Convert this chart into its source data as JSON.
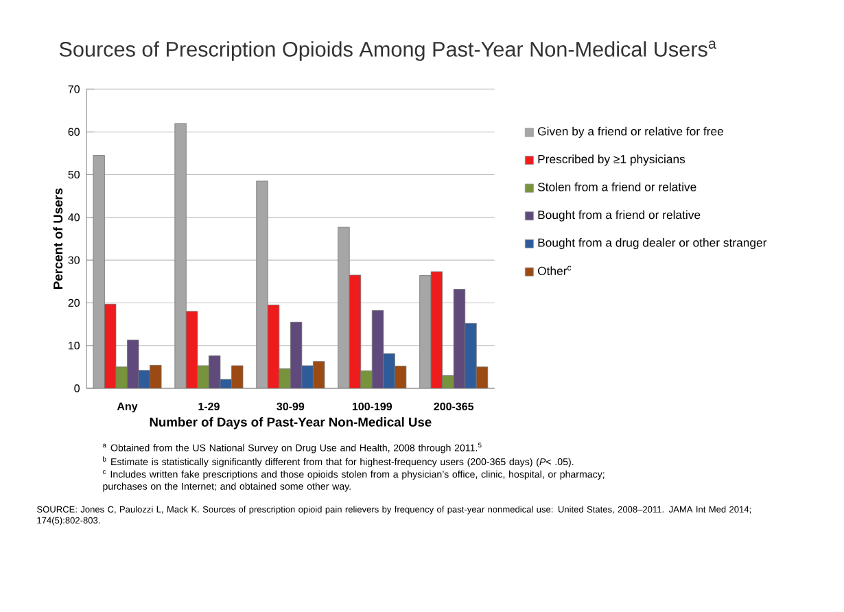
{
  "chart_data": {
    "type": "bar",
    "title": "Sources of Prescription Opioids Among Past-Year Non-Medical Users$^{a}$",
    "xlabel": "Number of Days of Past-Year Non-Medical Use",
    "ylabel": "Percent of Users",
    "categories": [
      "Any",
      "1-29",
      "30-99",
      "100-199",
      "200-365"
    ],
    "series": [
      {
        "name": "Given by a friend or relative for free",
        "color": "#a6a6a6",
        "values": [
          54.5,
          62,
          48.5,
          37.7,
          26.4
        ]
      },
      {
        "name": "Prescribed by ≥1 physicians",
        "color": "#ee1c1c",
        "values": [
          19.7,
          18,
          19.5,
          26.5,
          27.3
        ]
      },
      {
        "name": "Stolen from a friend or relative",
        "color": "#77933c",
        "values": [
          5,
          5.3,
          4.6,
          4.1,
          3
        ]
      },
      {
        "name": "Bought from a friend or relative",
        "color": "#604a7b",
        "values": [
          11.3,
          7.6,
          15.5,
          18.2,
          23.2
        ]
      },
      {
        "name": "Bought from a drug dealer or other stranger",
        "color": "#2e5c9a",
        "values": [
          4.2,
          2.1,
          5.3,
          8.1,
          15.2
        ]
      },
      {
        "name": "Other$^{c}$",
        "color": "#9c4a14",
        "values": [
          5.4,
          5.3,
          6.3,
          5.2,
          5
        ]
      }
    ],
    "ylim": [
      0,
      70
    ],
    "yticks": [
      0,
      10,
      20,
      30,
      40,
      50,
      60,
      70
    ],
    "grid": "y",
    "legend": "right",
    "annotations": [
      "$^{a}$ Obtained from the US National Survey on Drug Use and Health, 2008 through 2011.$^{5}$",
      "$^{b}$ Estimate is statistically significantly different from that for highest-frequency users (200-365 days) (*P*< .05).",
      "$^{c}$ Includes written fake prescriptions and those opioids stolen from a physician’s office, clinic, hospital, or pharmacy; purchases on the Internet; and obtained some other way.",
      "SOURCE: Jones C, Paulozzi L, Mack K. Sources of prescription opioid pain relievers by frequency of past-year nonmedical use: United States, 2008–2011. JAMA Int Med 2014; 174(5):802-803."
    ]
  }
}
